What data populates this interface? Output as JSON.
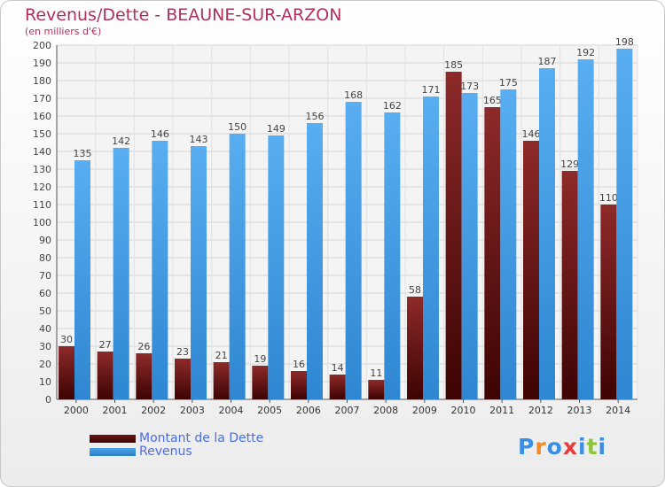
{
  "header": {
    "title": "Revenus/Dette - BEAUNE-SUR-ARZON",
    "subtitle": "(en milliers d'€)"
  },
  "legend": {
    "items": [
      {
        "label": "Montant de la Dette",
        "color": "#6e1414"
      },
      {
        "label": "Revenus",
        "color": "#4aa3e8"
      }
    ]
  },
  "logo": {
    "text": "Proxiti",
    "colors": [
      "#3a8ee6",
      "#f08a24",
      "#3a8ee6",
      "#e83a3a",
      "#3a8ee6",
      "#8cc63f",
      "#3a8ee6"
    ]
  },
  "chart_data": {
    "type": "bar",
    "categories": [
      "2000",
      "2001",
      "2002",
      "2003",
      "2004",
      "2005",
      "2006",
      "2007",
      "2008",
      "2009",
      "2010",
      "2011",
      "2012",
      "2013",
      "2014"
    ],
    "series": [
      {
        "name": "Montant de la Dette",
        "color": "#7a1d1d",
        "values": [
          30,
          27,
          26,
          23,
          21,
          19,
          16,
          14,
          11,
          58,
          185,
          165,
          146,
          129,
          110
        ]
      },
      {
        "name": "Revenus",
        "color": "#3f9be3",
        "values": [
          135,
          142,
          146,
          143,
          150,
          149,
          156,
          168,
          162,
          171,
          173,
          175,
          187,
          192,
          198
        ]
      }
    ],
    "ylim": [
      0,
      200
    ],
    "yticks": [
      0,
      10,
      20,
      30,
      40,
      50,
      60,
      70,
      80,
      90,
      100,
      110,
      120,
      130,
      140,
      150,
      160,
      170,
      180,
      190,
      200
    ],
    "grid": true,
    "xlabel": "",
    "ylabel": ""
  }
}
